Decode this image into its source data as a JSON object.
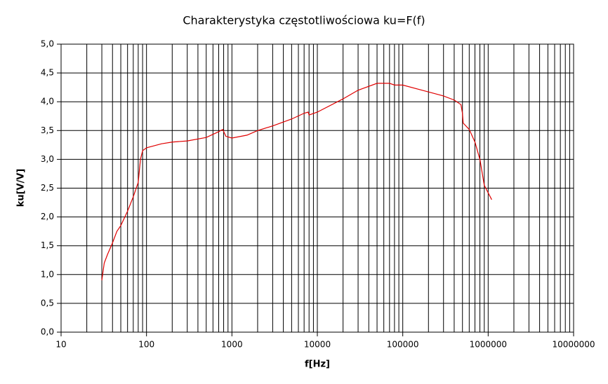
{
  "chart_data": {
    "type": "line",
    "title": "Charakterystyka częstotliwościowa ku=F(f)",
    "x_label": "f[Hz]",
    "y_label": "ku[V/V]",
    "x_scale": "log",
    "grid": true,
    "minor_grid": true,
    "xlim": [
      10,
      10000000
    ],
    "xticks": [
      10,
      100,
      1000,
      10000,
      100000,
      1000000,
      10000000
    ],
    "ylim": [
      0,
      5
    ],
    "yticks": [
      {
        "value": 0,
        "label": "0,0"
      },
      {
        "value": 0.5,
        "label": "0,5"
      },
      {
        "value": 1,
        "label": "1,0"
      },
      {
        "value": 1.5,
        "label": "1,5"
      },
      {
        "value": 2,
        "label": "2,0"
      },
      {
        "value": 2.5,
        "label": "2,5"
      },
      {
        "value": 3,
        "label": "3,0"
      },
      {
        "value": 3.5,
        "label": "3,5"
      },
      {
        "value": 4,
        "label": "4,0"
      },
      {
        "value": 4.5,
        "label": "4,5"
      },
      {
        "value": 5,
        "label": "5,0"
      }
    ],
    "series": [
      {
        "color": "#e00000",
        "x": [
          30,
          32,
          35,
          40,
          45,
          50,
          60,
          70,
          80,
          85,
          90,
          100,
          150,
          200,
          300,
          500,
          700,
          780,
          850,
          1000,
          1500,
          2000,
          3000,
          5000,
          7000,
          7800,
          8000,
          10000,
          20000,
          30000,
          50000,
          70000,
          80000,
          100000,
          200000,
          300000,
          400000,
          480000,
          500000,
          510000,
          600000,
          700000,
          800000,
          900000,
          1100000
        ],
        "values": [
          0.9,
          1.2,
          1.35,
          1.55,
          1.75,
          1.85,
          2.1,
          2.35,
          2.6,
          3.0,
          3.15,
          3.2,
          3.27,
          3.3,
          3.32,
          3.38,
          3.48,
          3.52,
          3.4,
          3.37,
          3.42,
          3.5,
          3.58,
          3.7,
          3.8,
          3.82,
          3.77,
          3.82,
          4.05,
          4.2,
          4.32,
          4.32,
          4.29,
          4.29,
          4.17,
          4.1,
          4.03,
          3.95,
          3.8,
          3.63,
          3.52,
          3.3,
          3.0,
          2.55,
          2.3
        ]
      }
    ]
  }
}
